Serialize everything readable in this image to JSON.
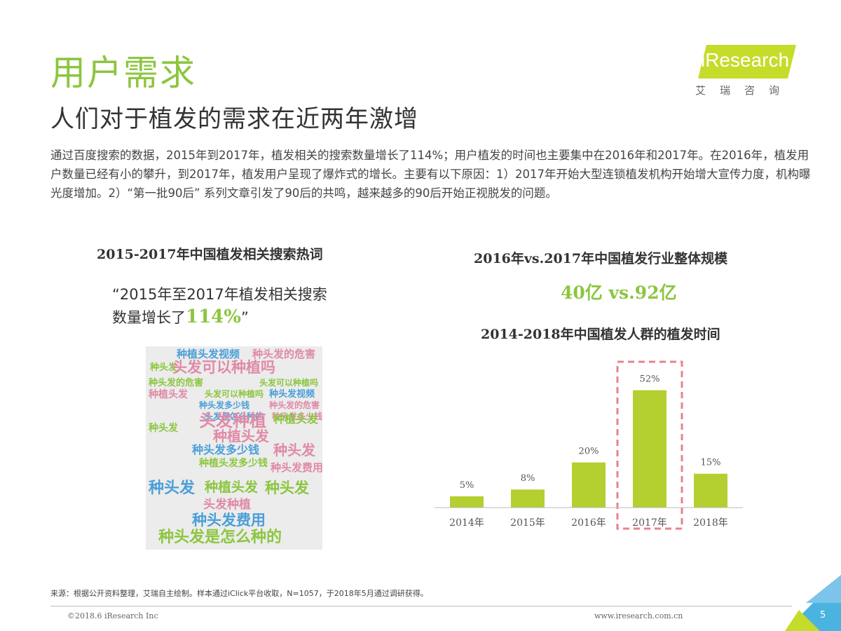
{
  "header": {
    "title": "用户需求",
    "subtitle": "人们对于植发的需求在近两年激增"
  },
  "logo": {
    "text": "iResearch",
    "subtext": "艾瑞咨询"
  },
  "intro": "通过百度搜索的数据，2015年到2017年，植发相关的搜索数量增长了114%；用户植发的时间也主要集中在2016年和2017年。在2016年，植发用户数量已经有小的攀升，到2017年，植发用户呈现了爆炸式的增长。主要有以下原因：1）2017年开始大型连锁植发机构开始增大宣传力度，机构曝光度增加。2）“第一批90后” 系列文章引发了90后的共鸣，越来越多的90后开始正视脱发的问题。",
  "left_panel": {
    "heading": "2015-2017年中国植发相关搜索热词",
    "quote_line1": "“2015年至2017年植发相关搜索",
    "quote_line2_prefix": "数量增长了",
    "quote_highlight": "114%",
    "quote_end": "”",
    "word_cloud": [
      {
        "text": "种植头发视频",
        "color": "#4a9fd8"
      },
      {
        "text": "种头发的危害",
        "color": "#e08aa6"
      },
      {
        "text": "种头发",
        "color": "#8cc63f"
      },
      {
        "text": "头发可以种植吗",
        "color": "#e08aa6"
      },
      {
        "text": "种头发的危害",
        "color": "#8cc63f"
      },
      {
        "text": "头发可以种植吗",
        "color": "#8cc63f"
      },
      {
        "text": "种植头发",
        "color": "#e08aa6"
      },
      {
        "text": "种头发视频",
        "color": "#4a9fd8"
      },
      {
        "text": "头发可以种植吗",
        "color": "#8cc63f"
      },
      {
        "text": "种头发多少钱",
        "color": "#4a9fd8"
      },
      {
        "text": "种头发的危害",
        "color": "#e08aa6"
      },
      {
        "text": "头发是怎么种的",
        "color": "#4a9fd8"
      },
      {
        "text": "种头发多少钱",
        "color": "#e08aa6"
      },
      {
        "text": "头发种植",
        "color": "#e08aa6"
      },
      {
        "text": "种植头发",
        "color": "#8cc63f"
      },
      {
        "text": "种植头发",
        "color": "#e08aa6"
      },
      {
        "text": "种头发",
        "color": "#8cc63f"
      },
      {
        "text": "种头发多少钱",
        "color": "#4a9fd8"
      },
      {
        "text": "种头发",
        "color": "#e08aa6"
      },
      {
        "text": "种植头发多少钱",
        "color": "#8cc63f"
      },
      {
        "text": "种头发费用",
        "color": "#e08aa6"
      },
      {
        "text": "种头发",
        "color": "#4a9fd8"
      },
      {
        "text": "种植头发",
        "color": "#8cc63f"
      },
      {
        "text": "种头发",
        "color": "#8cc63f"
      },
      {
        "text": "头发种植",
        "color": "#e08aa6"
      },
      {
        "text": "种头发费用",
        "color": "#4a9fd8"
      },
      {
        "text": "种头发是怎么种的",
        "color": "#8cc63f"
      }
    ]
  },
  "right_panel": {
    "scale_heading": "2016年vs.2017年中国植发行业整体规模",
    "scale_value": "40亿 vs.92亿",
    "chart_heading": "2014-2018年中国植发人群的植发时间"
  },
  "chart_data": {
    "type": "bar",
    "title": "2014-2018年中国植发人群的植发时间",
    "categories": [
      "2014年",
      "2015年",
      "2016年",
      "2017年",
      "2018年"
    ],
    "values": [
      5,
      8,
      20,
      52,
      15
    ],
    "value_labels": [
      "5%",
      "8%",
      "20%",
      "52%",
      "15%"
    ],
    "highlight_category": "2017年",
    "bar_color": "#b3cf30",
    "highlight_border_color": "#e8828c",
    "ylim": [
      0,
      60
    ],
    "grid": false,
    "xlabel": "",
    "ylabel": ""
  },
  "footer": {
    "source": "来源：根据公开资料整理，艾瑞自主绘制。样本通过iClick平台收取，N=1057，于2018年5月通过调研获得。",
    "copyright": "©2018.6 iResearch Inc",
    "website": "www.iresearch.com.cn",
    "page": "5"
  }
}
